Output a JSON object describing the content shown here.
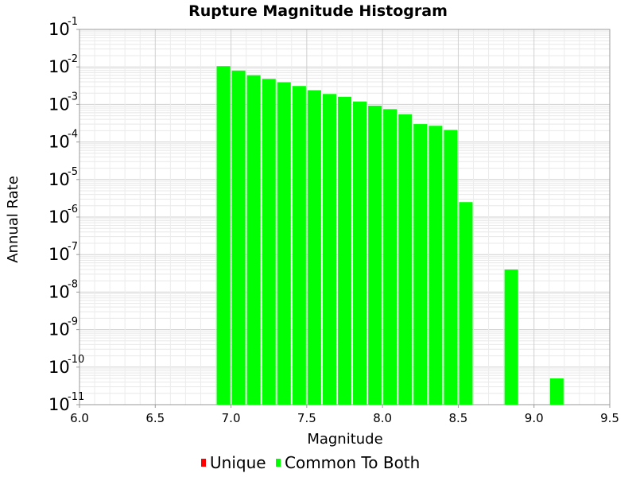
{
  "chart_data": {
    "type": "bar",
    "title": "Rupture Magnitude Histogram",
    "xlabel": "Magnitude",
    "ylabel": "Annual Rate",
    "xlim": [
      6.0,
      9.5
    ],
    "ylim": [
      1e-11,
      0.1
    ],
    "y_scale": "log",
    "bin_width": 0.1,
    "grid": true,
    "x_ticks": [
      "6.0",
      "6.5",
      "7.0",
      "7.5",
      "8.0",
      "8.5",
      "9.0",
      "9.5"
    ],
    "y_ticks": [
      {
        "base": "10",
        "exp": "-1"
      },
      {
        "base": "10",
        "exp": "-2"
      },
      {
        "base": "10",
        "exp": "-3"
      },
      {
        "base": "10",
        "exp": "-4"
      },
      {
        "base": "10",
        "exp": "-5"
      },
      {
        "base": "10",
        "exp": "-6"
      },
      {
        "base": "10",
        "exp": "-7"
      },
      {
        "base": "10",
        "exp": "-8"
      },
      {
        "base": "10",
        "exp": "-9"
      },
      {
        "base": "10",
        "exp": "-10"
      },
      {
        "base": "10",
        "exp": "-11"
      }
    ],
    "legend_position": "bottom",
    "series": [
      {
        "name": "Unique",
        "color": "#ff0000",
        "x": [],
        "values": []
      },
      {
        "name": "Common To Both",
        "color": "#00ff00",
        "x": [
          6.95,
          7.05,
          7.15,
          7.25,
          7.35,
          7.45,
          7.55,
          7.65,
          7.75,
          7.85,
          7.95,
          8.05,
          8.15,
          8.25,
          8.35,
          8.45,
          8.55,
          8.85,
          9.15
        ],
        "values": [
          0.0105,
          0.008,
          0.006,
          0.0048,
          0.0039,
          0.0031,
          0.0024,
          0.0019,
          0.0016,
          0.0012,
          0.00093,
          0.00075,
          0.00055,
          0.0003,
          0.00027,
          0.00021,
          2.5e-06,
          4e-08,
          5e-11
        ]
      }
    ]
  }
}
